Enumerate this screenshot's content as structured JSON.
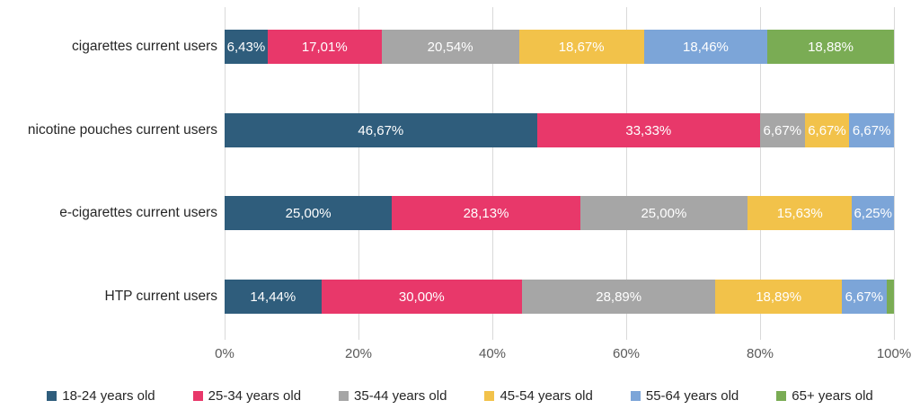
{
  "chart_data": {
    "type": "bar",
    "variant": "horizontal-stacked",
    "title": "",
    "xlabel": "",
    "ylabel": "",
    "xlim": [
      0,
      100
    ],
    "x_ticks": [
      "0%",
      "20%",
      "40%",
      "60%",
      "80%",
      "100%"
    ],
    "grid": "vertical",
    "legend_position": "bottom",
    "decimal_separator": ",",
    "categories": [
      "cigarettes current users",
      "nicotine pouches current users",
      "e-cigarettes current users",
      "HTP current users"
    ],
    "series": [
      {
        "name": "18-24 years old",
        "color": "#2f5d7c",
        "values": [
          6.43,
          46.67,
          25.0,
          14.44
        ],
        "labels": [
          "6,43%",
          "46,67%",
          "25,00%",
          "14,44%"
        ]
      },
      {
        "name": "25-34 years old",
        "color": "#e8386a",
        "values": [
          17.01,
          33.33,
          28.13,
          30.0
        ],
        "labels": [
          "17,01%",
          "33,33%",
          "28,13%",
          "30,00%"
        ]
      },
      {
        "name": "35-44 years old",
        "color": "#a6a6a6",
        "values": [
          20.54,
          6.67,
          25.0,
          28.89
        ],
        "labels": [
          "20,54%",
          "6,67%",
          "25,00%",
          "28,89%"
        ]
      },
      {
        "name": "45-54 years old",
        "color": "#f2c24a",
        "values": [
          18.67,
          6.67,
          15.63,
          18.89
        ],
        "labels": [
          "18,67%",
          "6,67%",
          "15,63%",
          "18,89%"
        ]
      },
      {
        "name": "55-64 years old",
        "color": "#7ca5d8",
        "values": [
          18.46,
          6.67,
          6.25,
          6.67
        ],
        "labels": [
          "18,46%",
          "6,67%",
          "6,25%",
          "6,67%"
        ]
      },
      {
        "name": "65+ years old",
        "color": "#7aac54",
        "values": [
          18.88,
          0,
          0,
          1.11
        ],
        "labels": [
          "18,88%",
          "",
          "",
          ""
        ]
      }
    ],
    "colors": {
      "gridline": "#d9d9d9",
      "axis_text": "#595959",
      "category_text": "#262626",
      "bar_label_text": "#ffffff"
    }
  }
}
